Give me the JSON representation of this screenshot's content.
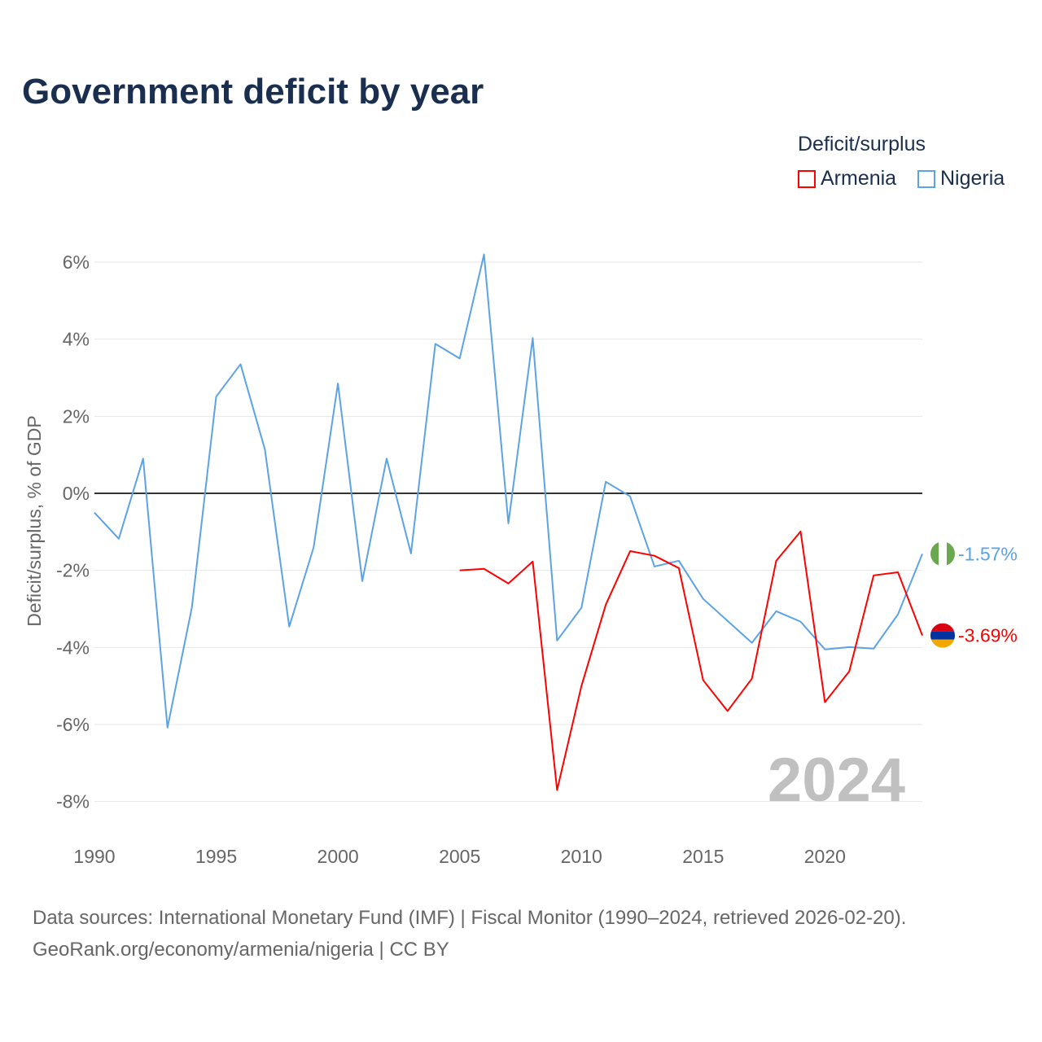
{
  "title": "Government deficit by year",
  "legend": {
    "title": "Deficit/surplus",
    "items": [
      {
        "name": "Armenia",
        "color": "#ff0000"
      },
      {
        "name": "Nigeria",
        "color": "#5ba3e6"
      }
    ]
  },
  "source": {
    "line1": "Data sources: International Monetary Fund (IMF) | Fiscal Monitor (1990–2024, retrieved 2026-02-20).",
    "line2": "GeoRank.org/economy/armenia/nigeria | CC BY"
  },
  "chart_data": {
    "type": "line",
    "title": "Government deficit by year",
    "xlabel": "",
    "ylabel": "Deficit/surplus, % of GDP",
    "xlim": [
      1990,
      2024
    ],
    "ylim": [
      -8,
      6
    ],
    "x_ticks": [
      1990,
      1995,
      2000,
      2005,
      2010,
      2015,
      2020
    ],
    "y_ticks": [
      6,
      4,
      2,
      0,
      -2,
      -4,
      -6,
      -8
    ],
    "y_tick_labels": [
      "6%",
      "4%",
      "2%",
      "0%",
      "-2%",
      "-4%",
      "-6%",
      "-8%"
    ],
    "year_watermark": "2024",
    "series": [
      {
        "name": "Nigeria",
        "color": "#5ba3e6",
        "end_label": "-1.57%",
        "start_year": 1990,
        "values": [
          -0.5,
          -1.18,
          0.9,
          -6.08,
          -2.97,
          2.51,
          3.35,
          1.14,
          -3.46,
          -1.41,
          2.85,
          -2.28,
          0.9,
          -1.56,
          3.88,
          3.5,
          6.2,
          -0.78,
          4.03,
          -3.82,
          -2.97,
          0.3,
          -0.08,
          -1.9,
          -1.75,
          -2.74,
          -3.31,
          -3.88,
          -3.06,
          -3.33,
          -4.05,
          -3.99,
          -4.03,
          -3.14,
          -1.57
        ]
      },
      {
        "name": "Armenia",
        "color": "#ff0000",
        "end_label": "-3.69%",
        "start_year": 2005,
        "values": [
          -2.0,
          -1.96,
          -2.34,
          -1.77,
          -7.7,
          -5.0,
          -2.89,
          -1.5,
          -1.62,
          -1.94,
          -4.85,
          -5.65,
          -4.81,
          -1.75,
          -0.99,
          -5.42,
          -4.62,
          -2.13,
          -2.05,
          -3.69
        ]
      }
    ]
  }
}
